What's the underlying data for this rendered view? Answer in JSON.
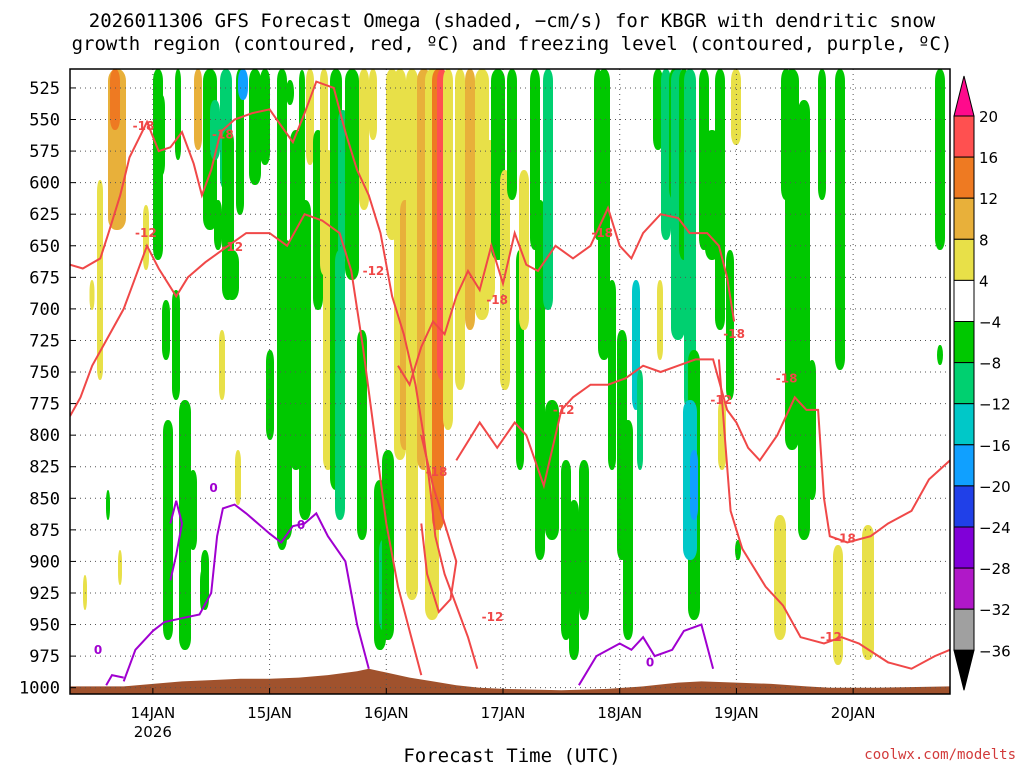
{
  "title_line1": "2026011306 GFS Forecast Omega (shaded, −cm/s) for KBGR with dendritic snow",
  "title_line2": "growth region (contoured, red, ºC) and freezing level (contoured, purple, ºC)",
  "xlabel": "Forecast Time (UTC)",
  "credit": "coolwx.com/modelts",
  "chart_data": {
    "type": "heatmap",
    "y_axis": {
      "label": "",
      "ticks": [
        525,
        550,
        575,
        600,
        625,
        650,
        675,
        700,
        725,
        750,
        775,
        800,
        825,
        850,
        875,
        900,
        925,
        950,
        975,
        1000
      ],
      "range": [
        1005,
        510
      ],
      "units": "hPa"
    },
    "x_axis": {
      "range_days": [
        13.29,
        20.83
      ],
      "ticks": [
        {
          "day": 14,
          "label": "14JAN",
          "sublabel": "2026"
        },
        {
          "day": 15,
          "label": "15JAN",
          "sublabel": ""
        },
        {
          "day": 16,
          "label": "16JAN",
          "sublabel": ""
        },
        {
          "day": 17,
          "label": "17JAN",
          "sublabel": ""
        },
        {
          "day": 18,
          "label": "18JAN",
          "sublabel": ""
        },
        {
          "day": 19,
          "label": "19JAN",
          "sublabel": ""
        },
        {
          "day": 20,
          "label": "20JAN",
          "sublabel": ""
        }
      ]
    },
    "grid": "dotted",
    "colorbar": {
      "labels": [
        "20",
        "16",
        "12",
        "8",
        "4",
        "−4",
        "−8",
        "−12",
        "−16",
        "−20",
        "−24",
        "−28",
        "−32",
        "−36"
      ],
      "colors": [
        "#ff0a8c",
        "#ff5050",
        "#ee7a22",
        "#e8b03a",
        "#e8e048",
        "#ffffff",
        "#00c800",
        "#00d070",
        "#00c8c8",
        "#10a0ff",
        "#2040e8",
        "#8000d8",
        "#b018c8",
        "#a0a0a0"
      ]
    },
    "contour_labels": [
      {
        "text": "-18",
        "day": 13.92,
        "p": 555
      },
      {
        "text": "-18",
        "day": 14.6,
        "p": 562
      },
      {
        "text": "-12",
        "day": 13.94,
        "p": 640
      },
      {
        "text": "-12",
        "day": 14.68,
        "p": 651
      },
      {
        "text": "-12",
        "day": 15.89,
        "p": 670
      },
      {
        "text": "-18",
        "day": 16.95,
        "p": 693
      },
      {
        "text": "-18",
        "day": 17.85,
        "p": 640
      },
      {
        "text": "-12",
        "day": 17.52,
        "p": 780
      },
      {
        "text": "-18",
        "day": 16.43,
        "p": 829
      },
      {
        "text": "-12",
        "day": 16.91,
        "p": 944
      },
      {
        "text": "-18",
        "day": 18.98,
        "p": 720
      },
      {
        "text": "-18",
        "day": 19.43,
        "p": 755
      },
      {
        "text": "-12",
        "day": 18.87,
        "p": 772
      },
      {
        "text": "-18",
        "day": 19.93,
        "p": 882
      },
      {
        "text": "-12",
        "day": 19.81,
        "p": 960
      },
      {
        "text": "0",
        "day": 14.52,
        "p": 842
      },
      {
        "text": "0",
        "day": 15.27,
        "p": 871
      },
      {
        "text": "0",
        "day": 13.53,
        "p": 970
      },
      {
        "text": "0",
        "day": 18.26,
        "p": 980
      }
    ]
  }
}
